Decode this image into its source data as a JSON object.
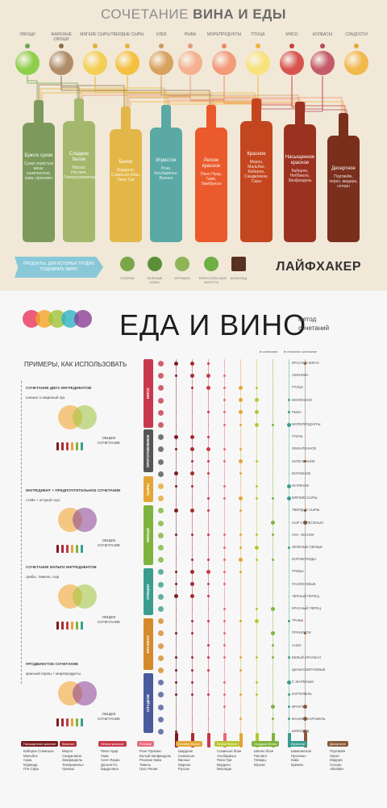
{
  "top": {
    "title_regular": "СОЧЕТАНИЕ ",
    "title_bold": "ВИНА И ЕДЫ",
    "categories": [
      "ОВОЩИ",
      "ЖАРЕНЫЕ ОВОЩИ",
      "МЯГКИЕ СЫРЫ",
      "ТВЕРДЫЕ СЫРЫ",
      "ХЛЕБ",
      "РЫБА",
      "МОРЕПРОДУКТЫ",
      "ПТИЦА",
      "МЯСО",
      "КОЛБАСЫ",
      "СЛАДОСТИ"
    ],
    "bottles": [
      {
        "name": "Брюте сухое",
        "desc": "Сухие игристые вина: шампанское, кава, просекко",
        "color": "#7d9a5c"
      },
      {
        "name": "Сладкое белое",
        "desc": "Мускат, Рислинг, Гевюрцтраминер",
        "color": "#a3b86c"
      },
      {
        "name": "Белое",
        "desc": "Шардоне, Совиньон блан, Пино Гри",
        "color": "#e3b648"
      },
      {
        "name": "Игристое",
        "desc": "Розе, Альбариньо, Вионье",
        "color": "#5aa9a5"
      },
      {
        "name": "Легкое красное",
        "desc": "Пино Нуар, Гаме, Ламбруско",
        "color": "#ea5a2c"
      },
      {
        "name": "Красное",
        "desc": "Мерло, Мальбек, Каберне, Санджовезе, Сира",
        "color": "#c4461f"
      },
      {
        "name": "Насыщенное красное",
        "desc": "Каберне, Неббиоло, Зинфандель",
        "color": "#9b3220"
      },
      {
        "name": "Десертное",
        "desc": "Портвейн, херес, мадера, сотерн",
        "color": "#7a2f1d"
      }
    ],
    "banner": "ПРОДУКТЫ, ДЛЯ КОТОРЫХ ТРУДНО ПОДОБРАТЬ ВИНО",
    "hard_foods": [
      "СПАРЖА",
      "ЗЕЛЕНЫЕ БОБЫ",
      "АРТИШОК",
      "БРЮССЕЛЬСКАЯ КАПУСТА",
      "ШОКОЛАД"
    ],
    "brand": "ЛАЙФХАКЕР"
  },
  "bottom": {
    "title": "ЕДА И ВИНО",
    "subtitle_line1": "метод",
    "subtitle_line2": "сочетаний",
    "examples_title": "ПРИМЕРЫ, КАК ИСПОЛЬЗОВАТЬ",
    "examples": [
      {
        "title": "СОЧЕТАНИЕ ДВУХ ИНГРЕДИЕНТОВ",
        "sub": "шпинат и жареный лук",
        "result": "ОБЩЕЕ СОЧЕТАНИЕ"
      },
      {
        "title": "ИНГРЕДИЕНТ + ПРЕДПОЧТИТЕЛЬНОЕ СОЧЕТАНИЕ",
        "sub": "стейк + острый соус",
        "result": "ОБЩЕЕ СОЧЕТАНИЕ"
      },
      {
        "title": "СОЧЕТАНИЕ МУЛЬТИ ИНГРЕДИЕНТОВ",
        "sub": "грибы, тимьян, сыр",
        "result": "ОБЩЕЕ СОЧЕТАНИЕ"
      },
      {
        "title": "ПРОДВИНУТОЕ СОЧЕТАНИЕ",
        "sub": "красный перец + морепродукты",
        "result": "ОБЩЕЕ СОЧЕТАНИЕ"
      }
    ],
    "legend_good": "сочетание",
    "legend_best": "отличное сочетание",
    "bands": [
      {
        "label": "МЯСО",
        "color": "#c9384a"
      },
      {
        "label": "ПРИГОТОВЛЕНИЕ",
        "color": "#555555"
      },
      {
        "label": "СЫРЫ",
        "color": "#e3a533"
      },
      {
        "label": "ОВОЩИ",
        "color": "#7fb33f"
      },
      {
        "label": "СПЕЦИИ",
        "color": "#3a9d8f"
      },
      {
        "label": "КРАХМАЛ",
        "color": "#d48a2a"
      },
      {
        "label": "СЛАДКОЕ",
        "color": "#4a5b9b"
      }
    ],
    "rows": [
      "КРАСНОЕ МЯСО",
      "СВИНИНА",
      "ПТИЦА",
      "МОЛЛЮСКИ",
      "РЫБА",
      "МОРЕПРОДУКТЫ",
      "ГРИЛЬ",
      "ОБЖАРЕННОЕ",
      "ЗАПЕЧЕННОЕ",
      "КОПЧЕНОЕ",
      "ЖАРЕНОЕ",
      "МЯГКИЕ СЫРЫ",
      "ТВЕРДЫЕ СЫРЫ",
      "СЫР С ПЛЕСЕНЬЮ",
      "ЛУК, ЧЕСНОК",
      "ЗЕЛЕНЫЕ ОВОЩИ",
      "КОРНЕПЛОДЫ",
      "ГРИБЫ",
      "ПАСЛЕНОВЫЕ",
      "ЧЕРНЫЙ ПЕРЕЦ",
      "КРАСНЫЙ ПЕРЕЦ",
      "ТРАВЫ",
      "ПРЯНОСТИ",
      "АНИС",
      "БЕЛЫЙ КРАХМАЛ",
      "ЦЕЛЬНОЗЕРНОВЫЕ",
      "С ЖАРЕНЫМ",
      "КАРТОФЕЛЬ",
      "ФРУКТЫ",
      "ВАНИЛЬ, КАРАМЕЛЬ",
      "ШОКОЛАД"
    ],
    "wines": [
      {
        "name": "Насыщенное красное",
        "color": "#7a1c22",
        "items": [
          "Каберне Совиньон",
          "Мальбек",
          "Сира",
          "Мурведр",
          "Пти Сира"
        ]
      },
      {
        "name": "Красное",
        "color": "#a82a30",
        "items": [
          "Мерло",
          "Санджовезе",
          "Зинфандель",
          "Темпранильо",
          "Гренаш"
        ]
      },
      {
        "name": "Легкое красное",
        "color": "#c9384a",
        "items": [
          "Пино Нуар",
          "Гаме",
          "Сент-Лоран",
          "Дольчетто",
          "Бардолино"
        ]
      },
      {
        "name": "Розовое",
        "color": "#e86a7a",
        "items": [
          "Розе Прованс",
          "Белый Зинфандель",
          "Розовое Кава",
          "Тавель",
          "Грос Ренан"
        ]
      },
      {
        "name": "Богатое белое",
        "color": "#e3a533",
        "items": [
          "Шардоне",
          "Семильон",
          "Вионье",
          "Марсан",
          "Руссан"
        ]
      },
      {
        "name": "Легкое белое",
        "color": "#b8c733",
        "items": [
          "Совиньон блан",
          "Альбариньо",
          "Пино Гри",
          "Вердехо",
          "Мюскаде"
        ]
      },
      {
        "name": "Сладкое белое",
        "color": "#7fb33f",
        "items": [
          "Шенен блан",
          "Рислинг",
          "Гевюрц",
          "Мускат"
        ]
      },
      {
        "name": "Игристое",
        "color": "#3a9d8f",
        "items": [
          "Шампанское",
          "Просекко",
          "Кава",
          "Креман"
        ]
      },
      {
        "name": "Десертное",
        "color": "#8a5a3a",
        "items": [
          "Портвейн",
          "Херес",
          "Мадера",
          "Сотерн",
          "Айсвайн"
        ]
      }
    ]
  }
}
